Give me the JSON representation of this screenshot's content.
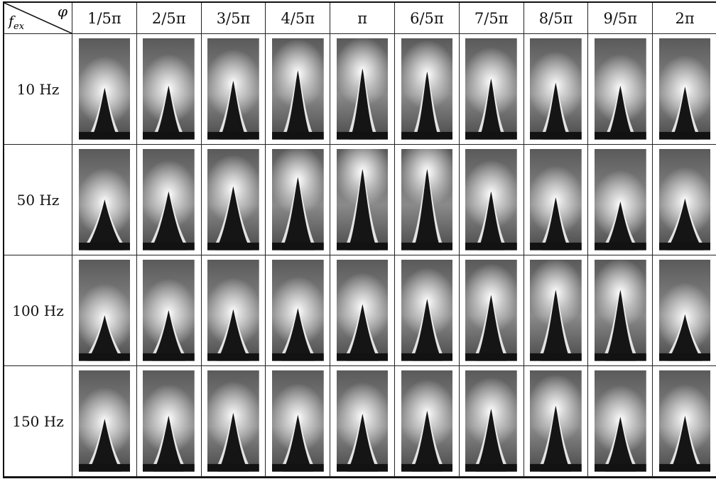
{
  "header": {
    "corner_row_var": "f",
    "corner_row_sub": "ex",
    "corner_col_var": "φ",
    "phases": [
      "1/5π",
      "2/5π",
      "3/5π",
      "4/5π",
      "π",
      "6/5π",
      "7/5π",
      "8/5π",
      "9/5π",
      "2π"
    ]
  },
  "rows": [
    {
      "label": "10 Hz",
      "flames": [
        {
          "tip": 0.47,
          "base": 0.27
        },
        {
          "tip": 0.45,
          "base": 0.27
        },
        {
          "tip": 0.4,
          "base": 0.27
        },
        {
          "tip": 0.3,
          "base": 0.27
        },
        {
          "tip": 0.28,
          "base": 0.25
        },
        {
          "tip": 0.31,
          "base": 0.24
        },
        {
          "tip": 0.38,
          "base": 0.24
        },
        {
          "tip": 0.42,
          "base": 0.25
        },
        {
          "tip": 0.45,
          "base": 0.26
        },
        {
          "tip": 0.46,
          "base": 0.26
        }
      ]
    },
    {
      "label": "50 Hz",
      "flames": [
        {
          "tip": 0.48,
          "base": 0.38
        },
        {
          "tip": 0.4,
          "base": 0.36
        },
        {
          "tip": 0.35,
          "base": 0.35
        },
        {
          "tip": 0.26,
          "base": 0.32
        },
        {
          "tip": 0.18,
          "base": 0.3
        },
        {
          "tip": 0.18,
          "base": 0.28
        },
        {
          "tip": 0.4,
          "base": 0.26
        },
        {
          "tip": 0.46,
          "base": 0.26
        },
        {
          "tip": 0.5,
          "base": 0.3
        },
        {
          "tip": 0.47,
          "base": 0.36
        }
      ]
    },
    {
      "label": "100 Hz",
      "flames": [
        {
          "tip": 0.53,
          "base": 0.34
        },
        {
          "tip": 0.48,
          "base": 0.32
        },
        {
          "tip": 0.47,
          "base": 0.32
        },
        {
          "tip": 0.46,
          "base": 0.32
        },
        {
          "tip": 0.42,
          "base": 0.32
        },
        {
          "tip": 0.37,
          "base": 0.3
        },
        {
          "tip": 0.33,
          "base": 0.3
        },
        {
          "tip": 0.28,
          "base": 0.3
        },
        {
          "tip": 0.28,
          "base": 0.3
        },
        {
          "tip": 0.52,
          "base": 0.34
        }
      ]
    },
    {
      "label": "150 Hz",
      "flames": [
        {
          "tip": 0.46,
          "base": 0.32
        },
        {
          "tip": 0.43,
          "base": 0.3
        },
        {
          "tip": 0.4,
          "base": 0.3
        },
        {
          "tip": 0.42,
          "base": 0.3
        },
        {
          "tip": 0.41,
          "base": 0.3
        },
        {
          "tip": 0.38,
          "base": 0.3
        },
        {
          "tip": 0.36,
          "base": 0.3
        },
        {
          "tip": 0.33,
          "base": 0.3
        },
        {
          "tip": 0.44,
          "base": 0.3
        },
        {
          "tip": 0.43,
          "base": 0.3
        }
      ]
    }
  ]
}
